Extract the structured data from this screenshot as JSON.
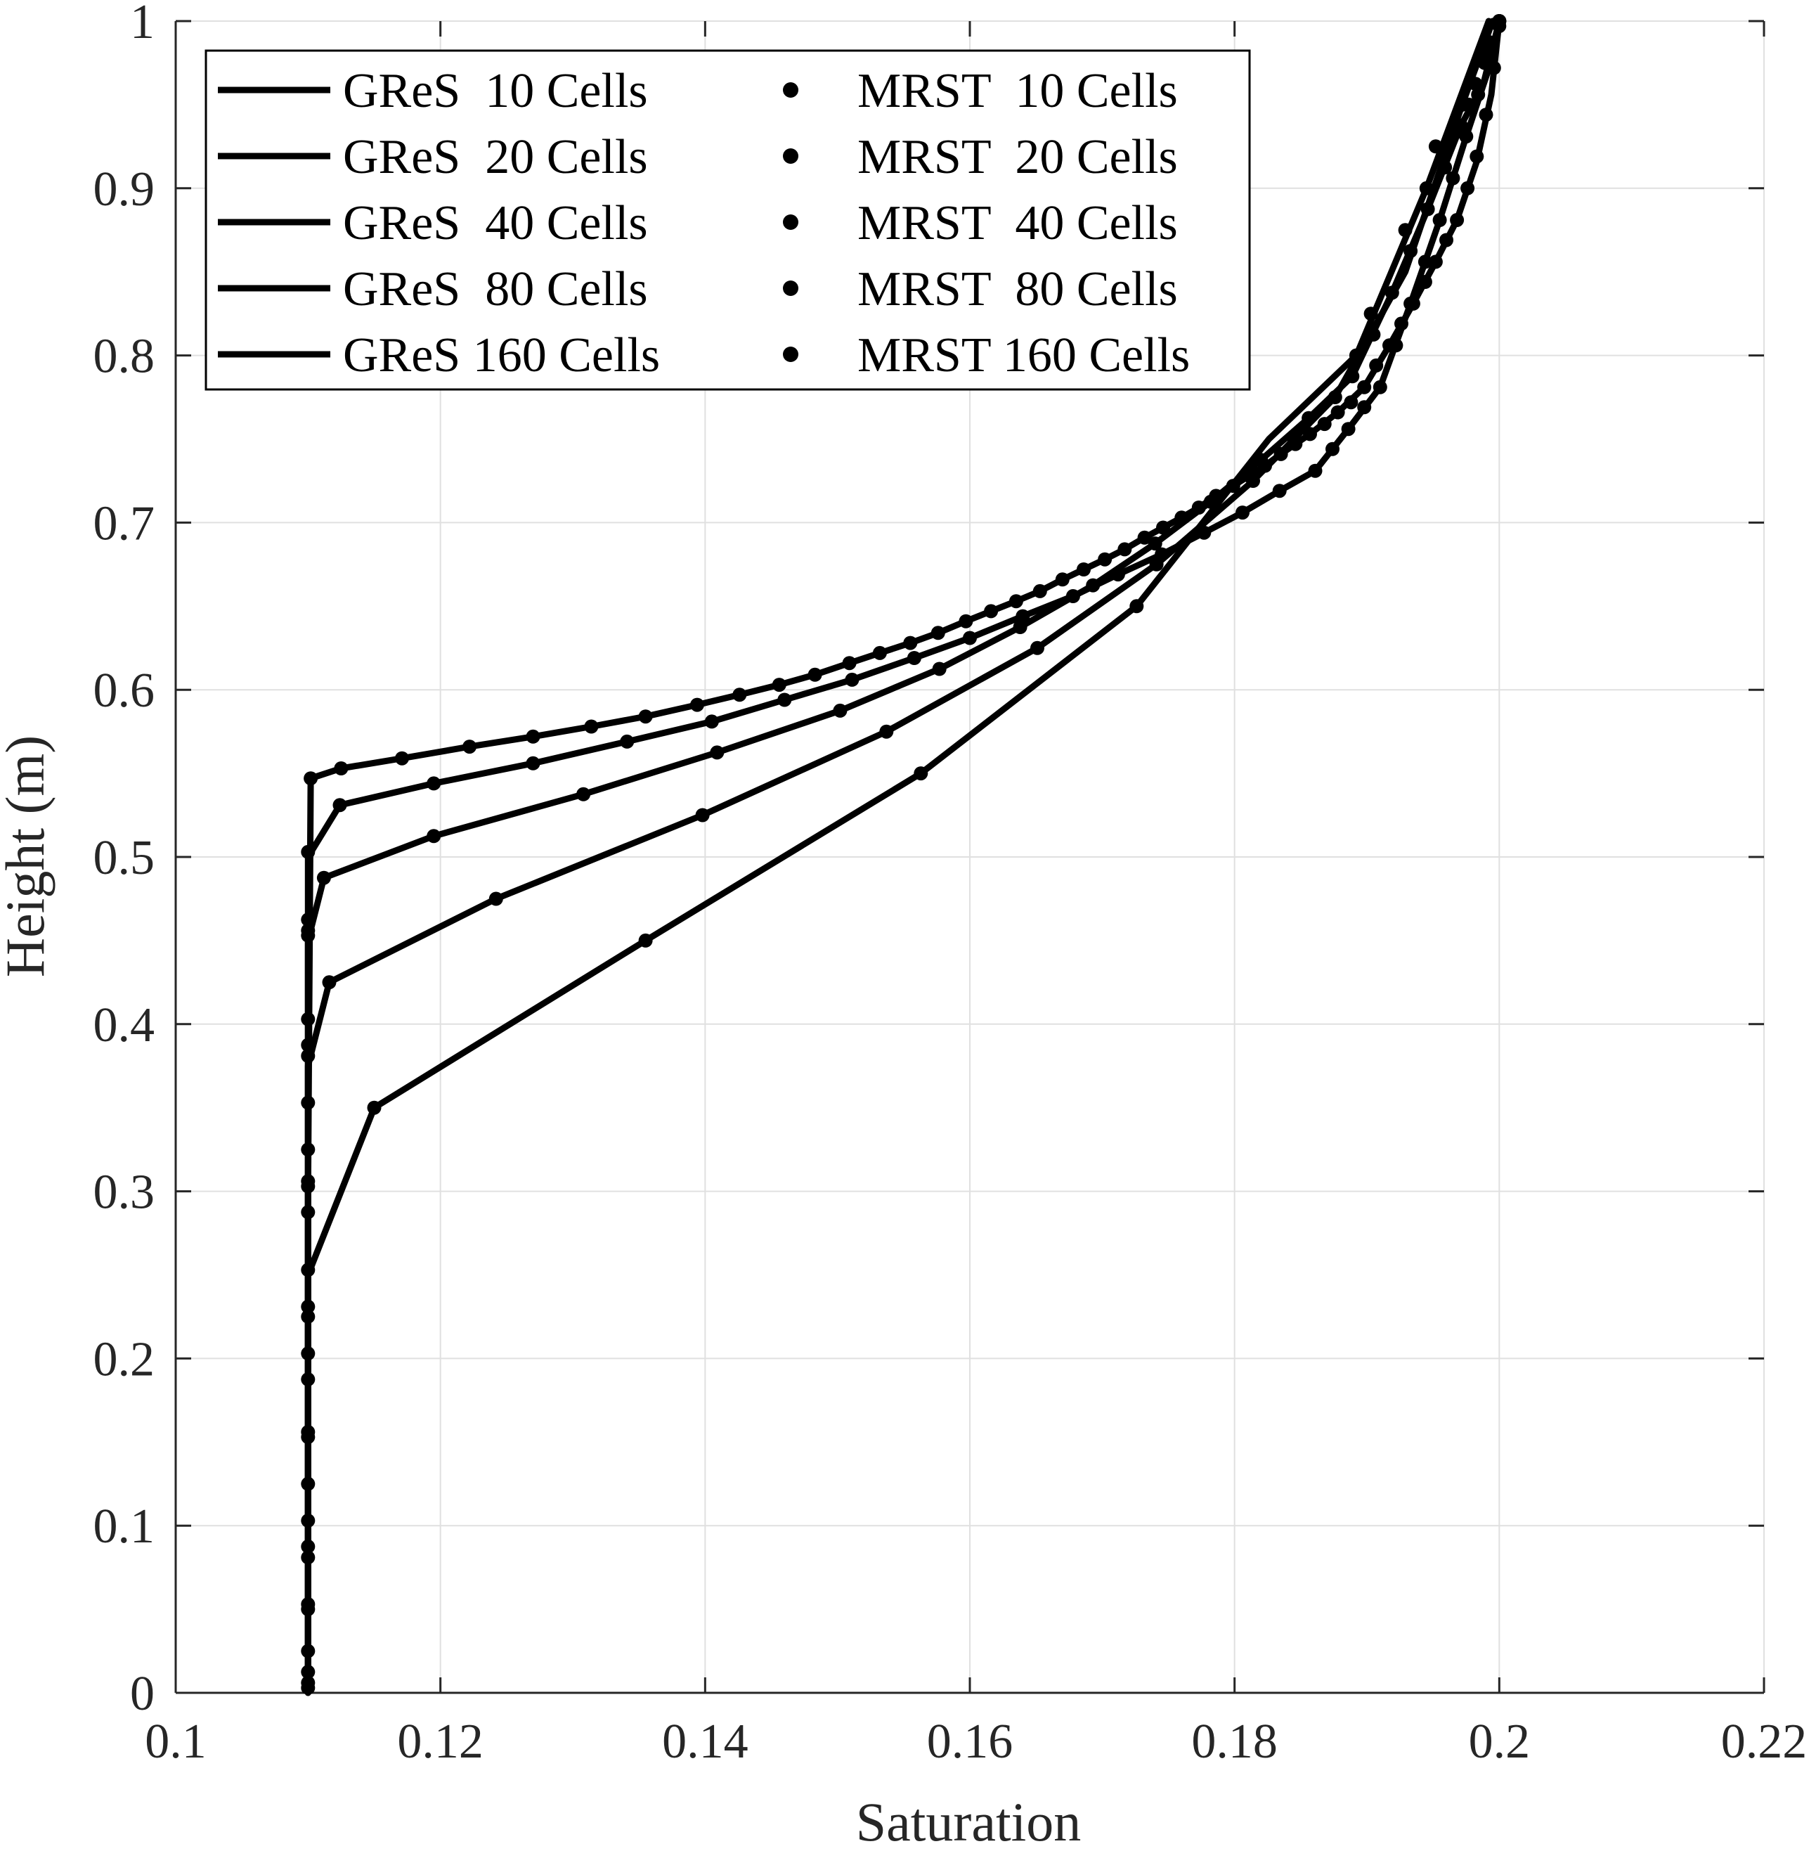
{
  "chart_data": {
    "type": "line",
    "xlabel": "Saturation",
    "ylabel": "Height (m)",
    "xlim": [
      0.1,
      0.22
    ],
    "ylim": [
      0,
      1
    ],
    "xticks": [
      "0.1",
      "0.12",
      "0.14",
      "0.16",
      "0.18",
      "0.2",
      "0.22"
    ],
    "yticks": [
      "0",
      "0.1",
      "0.2",
      "0.3",
      "0.4",
      "0.5",
      "0.6",
      "0.7",
      "0.8",
      "0.9",
      "1"
    ],
    "grid": true,
    "legend_position": "top-left",
    "colors": {
      "series": "#000000",
      "grid": "#e0e0e0",
      "axis": "#262626"
    },
    "series": [
      {
        "name": "GReS  10 Cells",
        "style": "line",
        "x": [
          0.11,
          0.11,
          0.11,
          0.115,
          0.1355,
          0.1563,
          0.1726,
          0.1826,
          0.1892,
          0.1945,
          0.1992
        ],
        "y": [
          0,
          0.15,
          0.25,
          0.35,
          0.45,
          0.55,
          0.65,
          0.75,
          0.8,
          0.9,
          1.0
        ]
      },
      {
        "name": "GReS  20 Cells",
        "style": "line",
        "x": [
          0.11,
          0.11,
          0.11,
          0.11,
          0.1116,
          0.1242,
          0.1398,
          0.1537,
          0.1651,
          0.1741,
          0.1814,
          0.1876,
          0.1929,
          0.1972,
          0.1995
        ],
        "y": [
          0,
          0.2,
          0.3,
          0.375,
          0.425,
          0.475,
          0.525,
          0.575,
          0.625,
          0.675,
          0.725,
          0.775,
          0.85,
          0.95,
          1.0
        ]
      },
      {
        "name": "GReS  40 Cells",
        "style": "line",
        "x": [
          0.11,
          0.11,
          0.11,
          0.1112,
          0.1195,
          0.1308,
          0.1409,
          0.1502,
          0.1577,
          0.1638,
          0.1693,
          0.174,
          0.1782,
          0.182,
          0.1856,
          0.1889,
          0.1919,
          0.1946,
          0.1971,
          0.1988,
          0.2
        ],
        "y": [
          0,
          0.3,
          0.45,
          0.4875,
          0.5125,
          0.5375,
          0.5625,
          0.5875,
          0.6125,
          0.6375,
          0.6625,
          0.6875,
          0.7125,
          0.7375,
          0.7625,
          0.7875,
          0.8375,
          0.8875,
          0.9375,
          0.9625,
          1.0
        ]
      },
      {
        "name": "GReS  80 Cells",
        "style": "line",
        "x": [
          0.11,
          0.11,
          0.11,
          0.1124,
          0.1195,
          0.127,
          0.1341,
          0.1405,
          0.146,
          0.1511,
          0.1558,
          0.16,
          0.164,
          0.1678,
          0.1712,
          0.1745,
          0.1777,
          0.1806,
          0.1834,
          0.1861,
          0.1886,
          0.191,
          0.1933,
          0.1955,
          0.1975,
          0.1991,
          0.2
        ],
        "y": [
          0,
          0.3,
          0.5,
          0.531,
          0.544,
          0.556,
          0.569,
          0.581,
          0.594,
          0.606,
          0.619,
          0.631,
          0.644,
          0.656,
          0.669,
          0.681,
          0.694,
          0.706,
          0.719,
          0.731,
          0.756,
          0.781,
          0.831,
          0.881,
          0.931,
          0.969,
          1.0
        ]
      },
      {
        "name": "GReS 160 Cells",
        "style": "line",
        "x": [
          0.11,
          0.11,
          0.1102,
          0.1125,
          0.1171,
          0.1222,
          0.127,
          0.1314,
          0.1355,
          0.1394,
          0.1426,
          0.1456,
          0.1483,
          0.1509,
          0.1532,
          0.1555,
          0.1576,
          0.1597,
          0.1616,
          0.1635,
          0.1653,
          0.167,
          0.1686,
          0.1702,
          0.1717,
          0.1732,
          0.1746,
          0.176,
          0.1773,
          0.1786,
          0.1799,
          0.1811,
          0.1823,
          0.1835,
          0.1846,
          0.1857,
          0.1878,
          0.1898,
          0.1917,
          0.1935,
          0.1952,
          0.1968,
          0.1983,
          0.1994,
          0.2
        ],
        "y": [
          0,
          0.3,
          0.547,
          0.553,
          0.559,
          0.566,
          0.572,
          0.578,
          0.584,
          0.591,
          0.597,
          0.603,
          0.609,
          0.616,
          0.622,
          0.628,
          0.634,
          0.641,
          0.647,
          0.653,
          0.659,
          0.666,
          0.672,
          0.678,
          0.684,
          0.691,
          0.697,
          0.703,
          0.709,
          0.716,
          0.722,
          0.728,
          0.734,
          0.741,
          0.747,
          0.753,
          0.766,
          0.781,
          0.806,
          0.831,
          0.856,
          0.881,
          0.916,
          0.956,
          1.0
        ]
      },
      {
        "name": "MRST  10 Cells",
        "style": "markers",
        "x": [
          0.11,
          0.115,
          0.1355,
          0.1563,
          0.1726,
          0.1845,
          0.1892,
          0.1945,
          0.1977,
          0.2
        ],
        "y": [
          0.05,
          0.35,
          0.45,
          0.55,
          0.65,
          0.75,
          0.8,
          0.9,
          0.95,
          1.0
        ]
      },
      {
        "name": "MRST  20 Cells",
        "style": "markers",
        "x": [
          0.11,
          0.11,
          0.11,
          0.11,
          0.1116,
          0.1242,
          0.1398,
          0.1537,
          0.1651,
          0.1741,
          0.1814,
          0.1876,
          0.1903,
          0.1929,
          0.1952,
          0.1972,
          0.1989,
          0.2
        ],
        "y": [
          0.025,
          0.125,
          0.225,
          0.325,
          0.425,
          0.475,
          0.525,
          0.575,
          0.625,
          0.675,
          0.725,
          0.775,
          0.825,
          0.875,
          0.925,
          0.95,
          0.975,
          1.0
        ]
      },
      {
        "name": "MRST  40 Cells",
        "style": "markers",
        "x": [
          0.11,
          0.11,
          0.11,
          0.11,
          0.11,
          0.11,
          0.1112,
          0.1195,
          0.1308,
          0.1409,
          0.1502,
          0.1577,
          0.1638,
          0.1693,
          0.174,
          0.1782,
          0.182,
          0.1856,
          0.1889,
          0.1905,
          0.1919,
          0.1933,
          0.1946,
          0.1959,
          0.1971,
          0.1982,
          0.1992,
          0.2
        ],
        "y": [
          0.0125,
          0.0875,
          0.1875,
          0.2875,
          0.3875,
          0.4625,
          0.4875,
          0.5125,
          0.5375,
          0.5625,
          0.5875,
          0.6125,
          0.6375,
          0.6625,
          0.6875,
          0.7125,
          0.7375,
          0.7625,
          0.7875,
          0.8125,
          0.8375,
          0.8625,
          0.8875,
          0.9125,
          0.9375,
          0.9625,
          0.9875,
          1.0
        ]
      },
      {
        "name": "MRST  80 Cells",
        "style": "markers",
        "x": [
          0.11,
          0.11,
          0.11,
          0.11,
          0.11,
          0.11,
          0.11,
          0.1124,
          0.1195,
          0.127,
          0.1341,
          0.1405,
          0.146,
          0.1511,
          0.1558,
          0.16,
          0.164,
          0.1678,
          0.1712,
          0.1745,
          0.1777,
          0.1806,
          0.1834,
          0.1861,
          0.1874,
          0.1886,
          0.1898,
          0.191,
          0.1922,
          0.1933,
          0.1944,
          0.1955,
          0.1965,
          0.1975,
          0.1984,
          0.1992,
          0.2
        ],
        "y": [
          0.006,
          0.081,
          0.156,
          0.231,
          0.306,
          0.381,
          0.456,
          0.531,
          0.544,
          0.556,
          0.569,
          0.581,
          0.594,
          0.606,
          0.619,
          0.631,
          0.644,
          0.656,
          0.669,
          0.681,
          0.694,
          0.706,
          0.719,
          0.731,
          0.744,
          0.756,
          0.769,
          0.781,
          0.806,
          0.831,
          0.856,
          0.881,
          0.906,
          0.931,
          0.956,
          0.981,
          1.0
        ]
      },
      {
        "name": "MRST 160 Cells",
        "style": "markers",
        "x": [
          0.11,
          0.11,
          0.11,
          0.11,
          0.11,
          0.11,
          0.11,
          0.11,
          0.11,
          0.11,
          0.11,
          0.1102,
          0.1125,
          0.1171,
          0.1222,
          0.127,
          0.1314,
          0.1355,
          0.1394,
          0.1426,
          0.1456,
          0.1483,
          0.1509,
          0.1532,
          0.1555,
          0.1576,
          0.1597,
          0.1616,
          0.1635,
          0.1653,
          0.167,
          0.1686,
          0.1702,
          0.1717,
          0.1732,
          0.1746,
          0.176,
          0.1773,
          0.1786,
          0.1799,
          0.1811,
          0.1823,
          0.1835,
          0.1846,
          0.1857,
          0.1868,
          0.1878,
          0.1888,
          0.1898,
          0.1907,
          0.1917,
          0.1926,
          0.1935,
          0.1944,
          0.1952,
          0.196,
          0.1968,
          0.1976,
          0.1983,
          0.199,
          0.1996,
          0.2
        ],
        "y": [
          0.003,
          0.053,
          0.103,
          0.153,
          0.203,
          0.253,
          0.303,
          0.353,
          0.403,
          0.453,
          0.503,
          0.547,
          0.553,
          0.559,
          0.566,
          0.572,
          0.578,
          0.584,
          0.591,
          0.597,
          0.603,
          0.609,
          0.616,
          0.622,
          0.628,
          0.634,
          0.641,
          0.647,
          0.653,
          0.659,
          0.666,
          0.672,
          0.678,
          0.684,
          0.691,
          0.697,
          0.703,
          0.709,
          0.716,
          0.722,
          0.728,
          0.734,
          0.741,
          0.747,
          0.753,
          0.759,
          0.766,
          0.772,
          0.781,
          0.794,
          0.806,
          0.819,
          0.831,
          0.844,
          0.856,
          0.869,
          0.881,
          0.9,
          0.919,
          0.944,
          0.972,
          0.997
        ]
      }
    ]
  }
}
